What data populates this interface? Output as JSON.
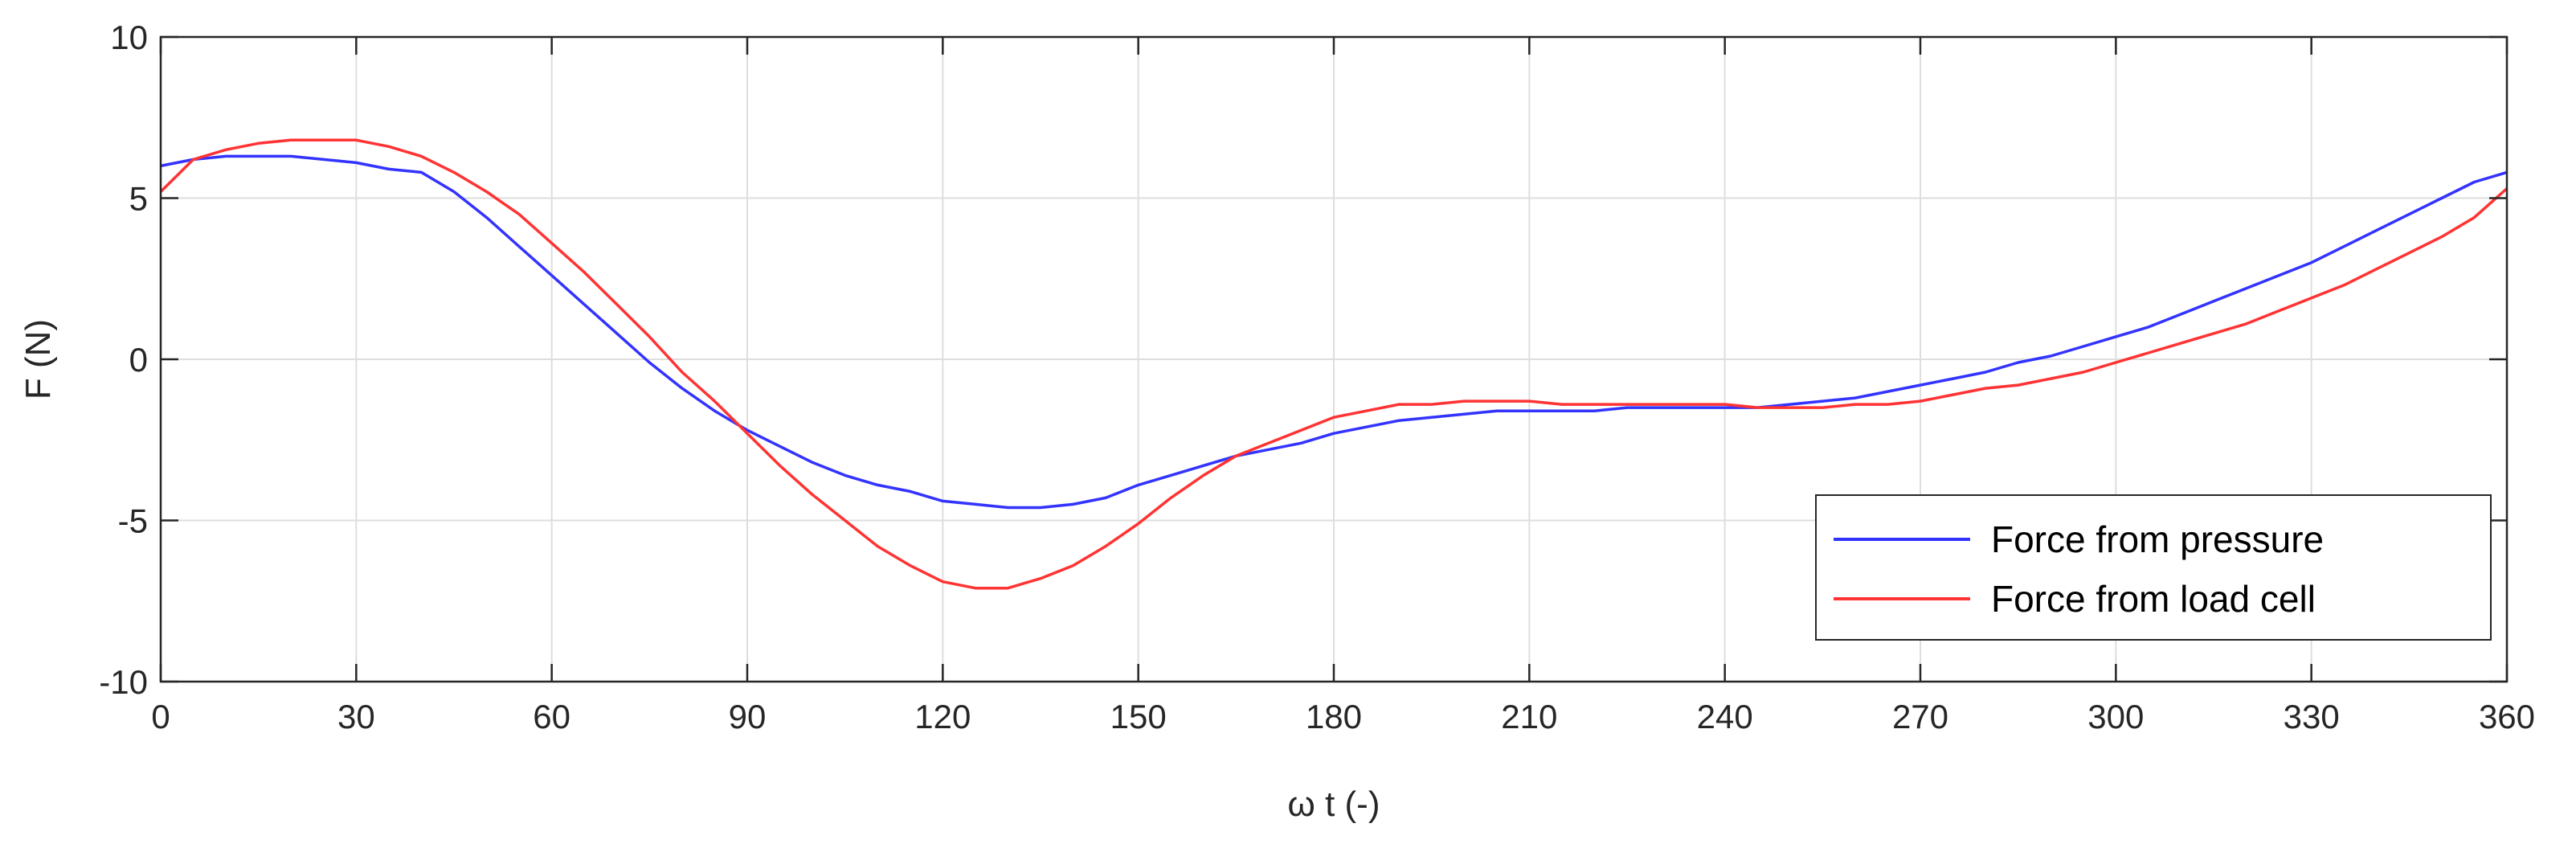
{
  "chart_data": {
    "type": "line",
    "title": "",
    "xlabel": "ω t (-)",
    "ylabel": "F (N)",
    "xlim": [
      0,
      360
    ],
    "ylim": [
      -10,
      10
    ],
    "xticks": [
      0,
      30,
      60,
      90,
      120,
      150,
      180,
      210,
      240,
      270,
      300,
      330,
      360
    ],
    "yticks": [
      -10,
      -5,
      0,
      5,
      10
    ],
    "xtick_labels": [
      "0",
      "30",
      "60",
      "90",
      "120",
      "150",
      "180",
      "210",
      "240",
      "270",
      "300",
      "330",
      "360"
    ],
    "ytick_labels": [
      "-10",
      "-5",
      "0",
      "5",
      "10"
    ],
    "grid": true,
    "legend_position": "bottom-right",
    "series": [
      {
        "name": "Force from pressure",
        "color": "#3333ff",
        "x": [
          0,
          5,
          10,
          15,
          20,
          25,
          30,
          35,
          40,
          45,
          50,
          55,
          60,
          65,
          70,
          75,
          80,
          85,
          90,
          95,
          100,
          105,
          110,
          115,
          120,
          125,
          130,
          135,
          140,
          145,
          150,
          155,
          160,
          165,
          170,
          175,
          180,
          185,
          190,
          195,
          200,
          205,
          210,
          215,
          220,
          225,
          230,
          235,
          240,
          245,
          250,
          255,
          260,
          265,
          270,
          275,
          280,
          285,
          290,
          295,
          300,
          305,
          310,
          315,
          320,
          325,
          330,
          335,
          340,
          345,
          350,
          355,
          360
        ],
        "y": [
          6.0,
          6.2,
          6.3,
          6.3,
          6.3,
          6.2,
          6.1,
          5.9,
          5.8,
          5.2,
          4.4,
          3.5,
          2.6,
          1.7,
          0.8,
          -0.1,
          -0.9,
          -1.6,
          -2.2,
          -2.7,
          -3.2,
          -3.6,
          -3.9,
          -4.1,
          -4.4,
          -4.5,
          -4.6,
          -4.6,
          -4.5,
          -4.3,
          -3.9,
          -3.6,
          -3.3,
          -3.0,
          -2.8,
          -2.6,
          -2.3,
          -2.1,
          -1.9,
          -1.8,
          -1.7,
          -1.6,
          -1.6,
          -1.6,
          -1.6,
          -1.5,
          -1.5,
          -1.5,
          -1.5,
          -1.5,
          -1.4,
          -1.3,
          -1.2,
          -1.0,
          -0.8,
          -0.6,
          -0.4,
          -0.1,
          0.1,
          0.4,
          0.7,
          1.0,
          1.4,
          1.8,
          2.2,
          2.6,
          3.0,
          3.5,
          4.0,
          4.5,
          5.0,
          5.5,
          5.8
        ]
      },
      {
        "name": "Force from load cell",
        "color": "#ff3333",
        "x": [
          0,
          5,
          10,
          15,
          20,
          25,
          30,
          35,
          40,
          45,
          50,
          55,
          60,
          65,
          70,
          75,
          80,
          85,
          90,
          95,
          100,
          105,
          110,
          115,
          120,
          125,
          130,
          135,
          140,
          145,
          150,
          155,
          160,
          165,
          170,
          175,
          180,
          185,
          190,
          195,
          200,
          205,
          210,
          215,
          220,
          225,
          230,
          235,
          240,
          245,
          250,
          255,
          260,
          265,
          270,
          275,
          280,
          285,
          290,
          295,
          300,
          305,
          310,
          315,
          320,
          325,
          330,
          335,
          340,
          345,
          350,
          355,
          360
        ],
        "y": [
          5.2,
          6.2,
          6.5,
          6.7,
          6.8,
          6.8,
          6.8,
          6.6,
          6.3,
          5.8,
          5.2,
          4.5,
          3.6,
          2.7,
          1.7,
          0.7,
          -0.4,
          -1.3,
          -2.3,
          -3.3,
          -4.2,
          -5.0,
          -5.8,
          -6.4,
          -6.9,
          -7.1,
          -7.1,
          -6.8,
          -6.4,
          -5.8,
          -5.1,
          -4.3,
          -3.6,
          -3.0,
          -2.6,
          -2.2,
          -1.8,
          -1.6,
          -1.4,
          -1.4,
          -1.3,
          -1.3,
          -1.3,
          -1.4,
          -1.4,
          -1.4,
          -1.4,
          -1.4,
          -1.4,
          -1.5,
          -1.5,
          -1.5,
          -1.4,
          -1.4,
          -1.3,
          -1.1,
          -0.9,
          -0.8,
          -0.6,
          -0.4,
          -0.1,
          0.2,
          0.5,
          0.8,
          1.1,
          1.5,
          1.9,
          2.3,
          2.8,
          3.3,
          3.8,
          4.4,
          5.3
        ]
      }
    ]
  }
}
